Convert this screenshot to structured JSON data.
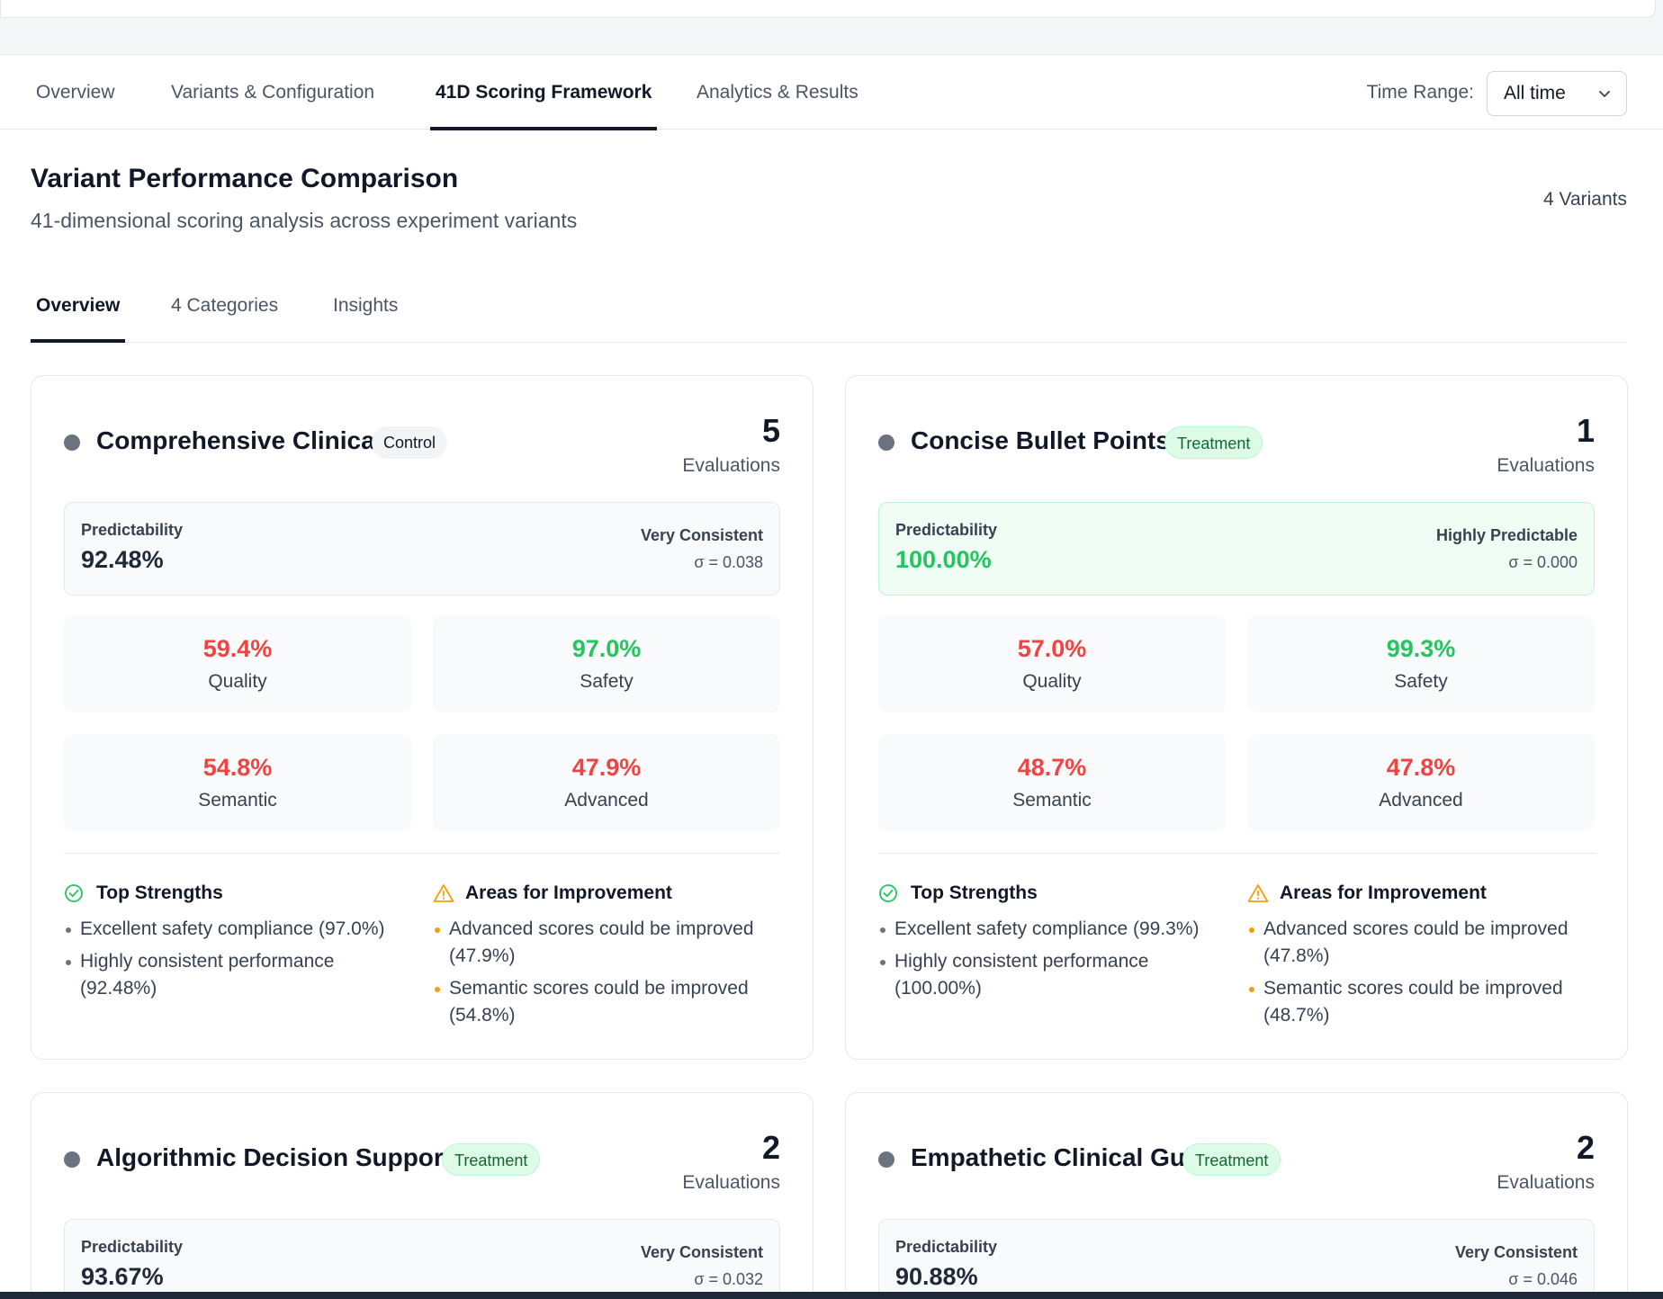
{
  "main_tabs": [
    "Overview",
    "Variants & Configuration",
    "41D Scoring Framework",
    "Analytics & Results"
  ],
  "time_range": {
    "label": "Time Range:",
    "value": "All time"
  },
  "header": {
    "title": "Variant Performance Comparison",
    "subtitle": "41-dimensional scoring analysis across experiment variants",
    "variant_count": "4 Variants"
  },
  "sub_tabs": [
    "Overview",
    "4 Categories",
    "Insights"
  ],
  "labels": {
    "evaluations": "Evaluations",
    "predictability": "Predictability",
    "quality": "Quality",
    "safety": "Safety",
    "semantic": "Semantic",
    "advanced": "Advanced",
    "top_strengths": "Top Strengths",
    "areas_for_improvement": "Areas for Improvement"
  },
  "colors": {
    "score_high": "#22c55e",
    "score_low": "#ef4444",
    "warning": "#f59e0b"
  },
  "variants": [
    {
      "name": "Comprehensive Clinical",
      "badge": "Control",
      "evaluations": "5",
      "predictability": "92.48%",
      "consistency": "Very Consistent",
      "sigma": "σ = 0.038",
      "quality": "59.4%",
      "safety": "97.0%",
      "semantic": "54.8%",
      "advanced": "47.9%",
      "strengths": [
        "Excellent safety compliance (97.0%)",
        "Highly consistent performance (92.48%)"
      ],
      "improvements": [
        "Advanced scores could be improved (47.9%)",
        "Semantic scores could be improved (54.8%)"
      ]
    },
    {
      "name": "Concise Bullet Points",
      "badge": "Treatment",
      "evaluations": "1",
      "predictability": "100.00%",
      "consistency": "Highly Predictable",
      "sigma": "σ = 0.000",
      "quality": "57.0%",
      "safety": "99.3%",
      "semantic": "48.7%",
      "advanced": "47.8%",
      "strengths": [
        "Excellent safety compliance (99.3%)",
        "Highly consistent performance (100.00%)"
      ],
      "improvements": [
        "Advanced scores could be improved (47.8%)",
        "Semantic scores could be improved (48.7%)"
      ]
    },
    {
      "name": "Algorithmic Decision Support",
      "badge": "Treatment",
      "evaluations": "2",
      "predictability": "93.67%",
      "consistency": "Very Consistent",
      "sigma": "σ = 0.032"
    },
    {
      "name": "Empathetic Clinical Guide",
      "badge": "Treatment",
      "evaluations": "2",
      "predictability": "90.88%",
      "consistency": "Very Consistent",
      "sigma": "σ = 0.046"
    }
  ]
}
